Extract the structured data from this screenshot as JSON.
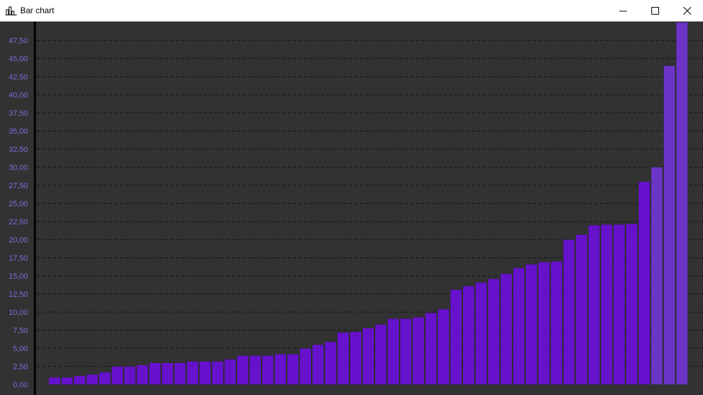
{
  "window": {
    "title": "Bar chart",
    "icon": "bar-chart-icon",
    "controls": [
      "minimize-icon",
      "maximize-icon",
      "close-icon"
    ]
  },
  "chart_data": {
    "type": "bar",
    "title": "",
    "xlabel": "",
    "ylabel": "",
    "ylim": [
      0,
      50
    ],
    "ytick_step": 2.5,
    "ytick_labels": [
      "0,00",
      "2,50",
      "5,00",
      "7,50",
      "10,00",
      "12,50",
      "15,00",
      "17,50",
      "20,00",
      "22,50",
      "25,00",
      "27,50",
      "30,00",
      "32,50",
      "35,00",
      "37,50",
      "40,00",
      "42,50",
      "45,00",
      "47,50"
    ],
    "grid": true,
    "legend": "none",
    "values": [
      1.0,
      1.0,
      1.2,
      1.4,
      1.7,
      2.5,
      2.5,
      2.7,
      3.0,
      3.0,
      3.0,
      3.2,
      3.2,
      3.2,
      3.5,
      4.0,
      4.0,
      4.0,
      4.2,
      4.2,
      5.0,
      5.5,
      5.9,
      7.2,
      7.3,
      7.8,
      8.3,
      9.1,
      9.1,
      9.3,
      9.9,
      10.4,
      13.1,
      13.6,
      14.1,
      14.6,
      15.3,
      16.1,
      16.6,
      16.9,
      17.0,
      20.0,
      20.7,
      22.0,
      22.1,
      22.1,
      22.2,
      28.0,
      30.0,
      44.0,
      50.0
    ],
    "colors": {
      "bar": "#6611cc",
      "bar_highlight": "#6c35c8",
      "background": "#323232",
      "grid": "#141414",
      "axis": "#000000",
      "tick_label": "#7d6de0"
    }
  }
}
